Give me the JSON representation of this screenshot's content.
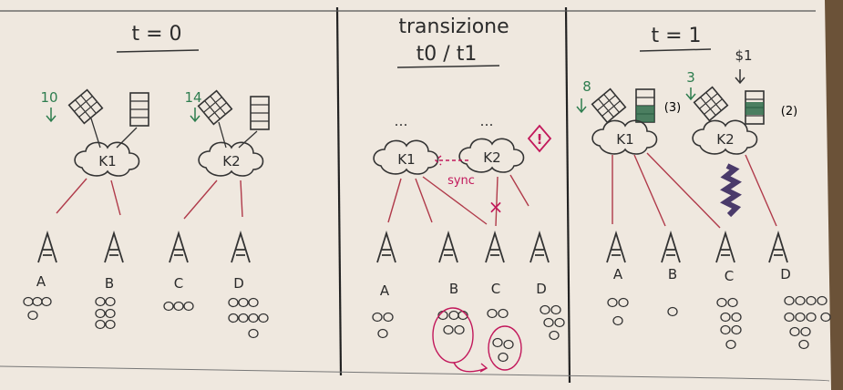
{
  "panels": [
    {
      "title": "t = 0",
      "subtitle": "",
      "nodes": [
        {
          "label": "K1",
          "weight": "10",
          "storage_suffix": ""
        },
        {
          "label": "K2",
          "weight": "14",
          "storage_suffix": ""
        }
      ],
      "clients": [
        "A",
        "B",
        "C",
        "D"
      ]
    },
    {
      "title": "transizione",
      "subtitle": "t0 / t1",
      "nodes": [
        {
          "label": "K1",
          "weight": "",
          "storage_suffix": ""
        },
        {
          "label": "K2",
          "weight": "",
          "storage_suffix": ""
        }
      ],
      "sync_label": "sync",
      "warning_mark": "!",
      "cut_mark": "×",
      "clients": [
        "A",
        "B",
        "C",
        "D"
      ]
    },
    {
      "title": "t = 1",
      "subtitle": "",
      "nodes": [
        {
          "label": "K1",
          "weight": "8",
          "storage_suffix": "(3)"
        },
        {
          "label": "K2",
          "weight": "3",
          "storage_suffix": "(2)",
          "price": "$1"
        }
      ],
      "clients": [
        "A",
        "B",
        "C",
        "D"
      ]
    }
  ],
  "dots": "…"
}
